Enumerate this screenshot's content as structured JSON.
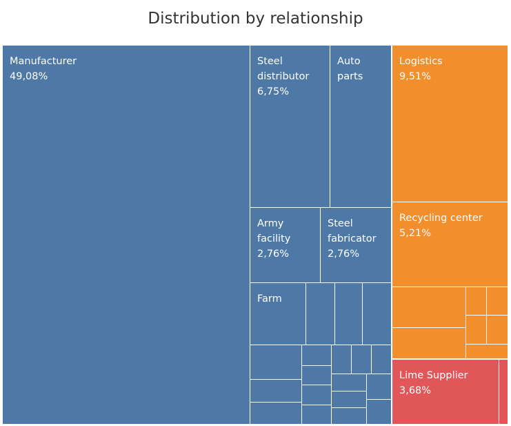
{
  "chart_data": {
    "type": "treemap",
    "title": "Distribution by relationship",
    "groups": [
      {
        "color": "#4e79a7",
        "items": [
          {
            "label": "Manufacturer",
            "value": "49,08%"
          },
          {
            "label": "Steel distributor",
            "value": "6,75%"
          },
          {
            "label": "Auto parts",
            "value": ""
          },
          {
            "label": "Army facility",
            "value": "2,76%"
          },
          {
            "label": "Steel fabricator",
            "value": "2,76%"
          },
          {
            "label": "Farm",
            "value": ""
          }
        ]
      },
      {
        "color": "#f28e2b",
        "items": [
          {
            "label": "Logistics",
            "value": "9,51%"
          },
          {
            "label": "Recycling center",
            "value": "5,21%"
          }
        ]
      },
      {
        "color": "#e15759",
        "items": [
          {
            "label": "Lime Supplier",
            "value": "3,68%"
          }
        ]
      }
    ]
  }
}
